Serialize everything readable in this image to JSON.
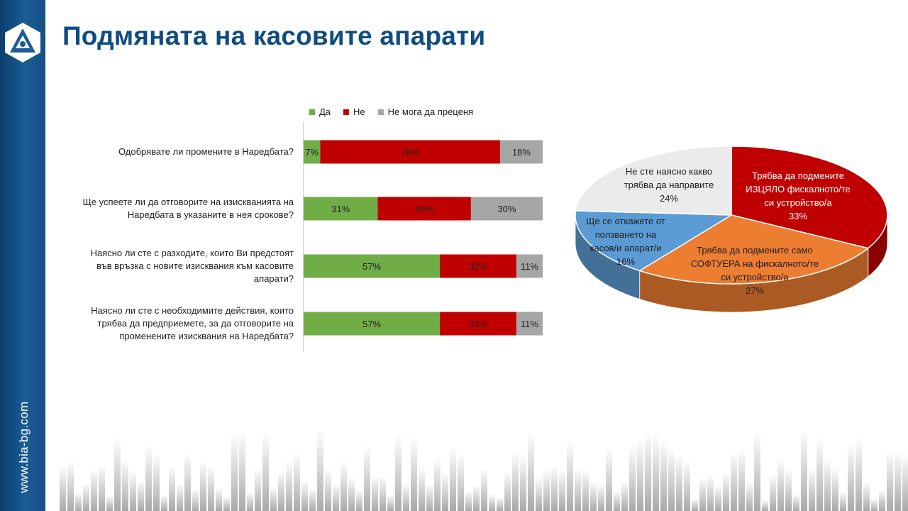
{
  "title": "Подмяната на касовите апарати",
  "site_url": "www.bia-bg.com",
  "colors": {
    "yes": "#70ad47",
    "no": "#c00000",
    "cant": "#a6a6a6",
    "brand": "#0f4c81"
  },
  "chart_data": [
    {
      "type": "bar",
      "orientation": "horizontal-stacked-100",
      "legend": [
        "Да",
        "Не",
        "Не мога да преценя"
      ],
      "categories": [
        "Одобрявате ли промените в Наредбата?",
        "Ще успеете ли да отговорите на изискванията на Наредбата в указаните в нея срокове?",
        "Наясно ли сте с разходите, които Ви предстоят във връзка с новите изисквания към касовите апарати?",
        "Наясно ли сте с необходимите действия, които трябва да предприемете, за да отговорите на променените изисквания на Наредбата?"
      ],
      "category_lines": [
        [
          "Одобрявате ли промените в Наредбата?"
        ],
        [
          "Ще успеете ли да отговорите на изискванията на",
          "Наредбата в указаните в нея срокове?"
        ],
        [
          "Наясно ли сте с разходите, които Ви предстоят",
          "във връзка с новите изисквания към касовите",
          "апарати?"
        ],
        [
          "Наясно ли сте с необходимите действия, които",
          "трябва да предприемете, за да отговорите на",
          "променените изисквания на Наредбата?"
        ]
      ],
      "series": [
        {
          "name": "Да",
          "values": [
            7,
            31,
            57,
            57
          ],
          "labels": [
            "7%",
            "31%",
            "57%",
            "57%"
          ]
        },
        {
          "name": "Не",
          "values": [
            76,
            39,
            32,
            32
          ],
          "labels": [
            "76%",
            "39%",
            "32%",
            "32%"
          ]
        },
        {
          "name": "Не мога да преценя",
          "values": [
            18,
            30,
            11,
            11
          ],
          "labels": [
            "18%",
            "30%",
            "11%",
            "11%"
          ]
        }
      ]
    },
    {
      "type": "pie",
      "style": "3d",
      "slices": [
        {
          "name": "Трябва да подмените ИЗЦЯЛО фискалното/те си устройство/а",
          "value": 33,
          "label": "33%",
          "lines": [
            "Трябва да подмените",
            "ИЗЦЯЛО фискалното/те",
            "си устройство/а",
            "33%"
          ],
          "color": "#c00000"
        },
        {
          "name": "Трябва да подмените само СОФТУЕРА на фискалното/те си устройство/а",
          "value": 27,
          "label": "27%",
          "lines": [
            "Трябва да подмените само",
            "СОФТУЕРА на фискалното/те",
            "си устройство/а",
            "27%"
          ],
          "color": "#ed7d31"
        },
        {
          "name": "Ще се откажете от ползването на касов/и апарат/и",
          "value": 16,
          "label": "16%",
          "lines": [
            "Ще се откажете от",
            "ползването на",
            "касов/и апарат/и",
            "16%"
          ],
          "color": "#5b9bd5"
        },
        {
          "name": "Не сте наясно какво трябва да направите",
          "value": 24,
          "label": "24%",
          "lines": [
            "Не сте наясно какво",
            "трябва да направите",
            "24%"
          ],
          "color": "#ebebeb"
        }
      ]
    }
  ]
}
